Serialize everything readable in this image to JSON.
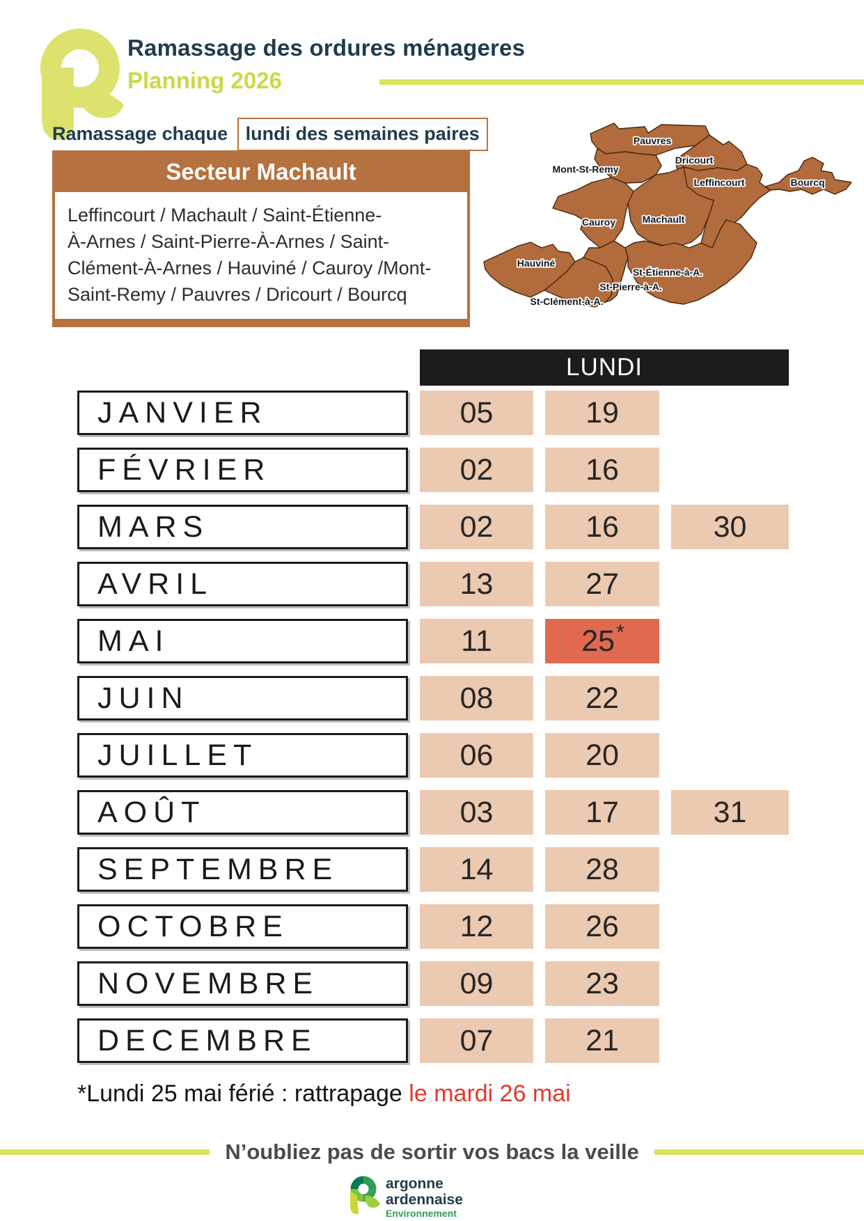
{
  "header": {
    "title": "Ramassage des ordures ménageres",
    "subtitle": "Planning 2026"
  },
  "notice": {
    "prefix": "Ramassage chaque",
    "highlight": "lundi des semaines paires"
  },
  "sector": {
    "title": "Secteur Machault",
    "communes_lines": [
      "Leffincourt / Machault / Saint-Étienne-",
      "À-Arnes / Saint-Pierre-À-Arnes / Saint-",
      "Clément-À-Arnes / Hauviné / Cauroy /Mont-",
      "Saint-Remy / Pauvres / Dricourt / Bourcq"
    ]
  },
  "map": {
    "communes": [
      {
        "name": "Pauvres"
      },
      {
        "name": "Dricourt"
      },
      {
        "name": "Mont-St-Remy"
      },
      {
        "name": "Leffincourt"
      },
      {
        "name": "Bourcq"
      },
      {
        "name": "Cauroy"
      },
      {
        "name": "Machault"
      },
      {
        "name": "Hauviné"
      },
      {
        "name": "St-Étienne-à-A."
      },
      {
        "name": "St-Pierre-à-A."
      },
      {
        "name": "St-Clément-à-A."
      }
    ]
  },
  "calendar": {
    "column_header": "LUNDI",
    "rows": [
      {
        "month": "JANVIER",
        "dates": [
          "05",
          "19"
        ]
      },
      {
        "month": "FÉVRIER",
        "dates": [
          "02",
          "16"
        ]
      },
      {
        "month": "MARS",
        "dates": [
          "02",
          "16",
          "30"
        ]
      },
      {
        "month": "AVRIL",
        "dates": [
          "13",
          "27"
        ]
      },
      {
        "month": "MAI",
        "dates": [
          "11",
          "25"
        ],
        "special_index": 1,
        "special_suffix": "*"
      },
      {
        "month": "JUIN",
        "dates": [
          "08",
          "22"
        ]
      },
      {
        "month": "JUILLET",
        "dates": [
          "06",
          "20"
        ]
      },
      {
        "month": "AOÛT",
        "dates": [
          "03",
          "17",
          "31"
        ]
      },
      {
        "month": "SEPTEMBRE",
        "dates": [
          "14",
          "28"
        ]
      },
      {
        "month": "OCTOBRE",
        "dates": [
          "12",
          "26"
        ]
      },
      {
        "month": "NOVEMBRE",
        "dates": [
          "09",
          "23"
        ]
      },
      {
        "month": "DECEMBRE",
        "dates": [
          "07",
          "21"
        ]
      }
    ]
  },
  "footnote": {
    "text_black": "*Lundi 25 mai férié : rattrapage ",
    "text_red": "le mardi 26 mai"
  },
  "reminder": {
    "text": "N’oubliez pas de sortir vos bacs la veille"
  },
  "footer_logo": {
    "line1": "argonne",
    "line2": "ardennaise",
    "line3": "Environnement"
  },
  "colors": {
    "title_navy": "#1f3c4d",
    "accent_yellow_green": "#dbe25d",
    "planning_green": "#ccd84a",
    "brand_brown": "#b5713f",
    "map_brown": "#b26b3c",
    "cell_peach": "#ecc9b1",
    "holiday_red": "#e0694e",
    "header_black": "#1d1b1c",
    "footnote_red": "#e03a2f",
    "footer_green": "#2f9e53"
  }
}
